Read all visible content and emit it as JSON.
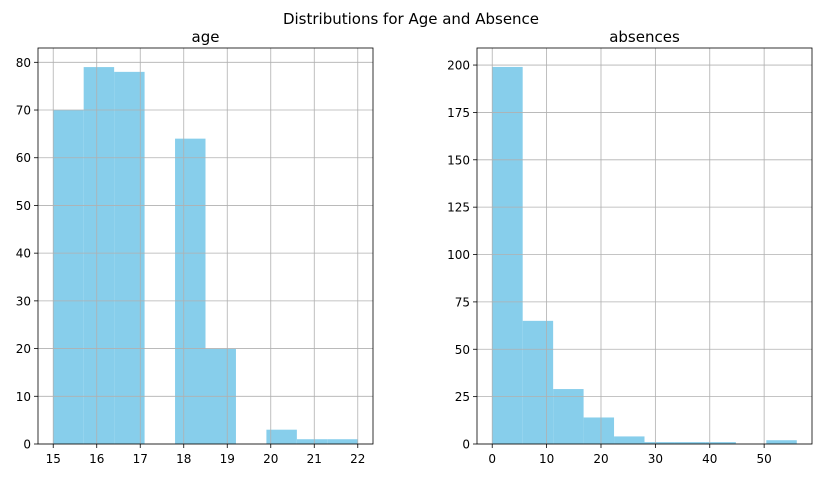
{
  "chart_data": {
    "title": "Distributions for Age and Absence",
    "colors": {
      "bar": "#87ceeb",
      "grid": "#b0b0b0",
      "axis": "#000000"
    },
    "charts": [
      {
        "type": "bar",
        "title": "age",
        "xlabel": "",
        "ylabel": "",
        "grid": true,
        "xlim": [
          14.65,
          22.35
        ],
        "ylim": [
          0,
          83
        ],
        "xticks": [
          15,
          16,
          17,
          18,
          19,
          20,
          21,
          22
        ],
        "yticks": [
          0,
          10,
          20,
          30,
          40,
          50,
          60,
          70,
          80
        ],
        "bins": [
          {
            "x0": 15.0,
            "x1": 15.7,
            "value": 70
          },
          {
            "x0": 15.7,
            "x1": 16.4,
            "value": 79
          },
          {
            "x0": 16.4,
            "x1": 17.1,
            "value": 78
          },
          {
            "x0": 17.1,
            "x1": 17.8,
            "value": 0
          },
          {
            "x0": 17.8,
            "x1": 18.5,
            "value": 64
          },
          {
            "x0": 18.5,
            "x1": 19.2,
            "value": 20
          },
          {
            "x0": 19.2,
            "x1": 19.9,
            "value": 0
          },
          {
            "x0": 19.9,
            "x1": 20.6,
            "value": 3
          },
          {
            "x0": 20.6,
            "x1": 21.3,
            "value": 1
          },
          {
            "x0": 21.3,
            "x1": 22.0,
            "value": 1
          }
        ]
      },
      {
        "type": "bar",
        "title": "absences",
        "xlabel": "",
        "ylabel": "",
        "grid": true,
        "xlim": [
          -2.8,
          58.8
        ],
        "ylim": [
          0,
          209
        ],
        "xticks": [
          0,
          10,
          20,
          30,
          40,
          50
        ],
        "yticks": [
          0,
          25,
          50,
          75,
          100,
          125,
          150,
          175,
          200
        ],
        "bins": [
          {
            "x0": 0.0,
            "x1": 5.6,
            "value": 199
          },
          {
            "x0": 5.6,
            "x1": 11.2,
            "value": 65
          },
          {
            "x0": 11.2,
            "x1": 16.8,
            "value": 29
          },
          {
            "x0": 16.8,
            "x1": 22.4,
            "value": 14
          },
          {
            "x0": 22.4,
            "x1": 28.0,
            "value": 4
          },
          {
            "x0": 28.0,
            "x1": 33.6,
            "value": 1
          },
          {
            "x0": 33.6,
            "x1": 39.2,
            "value": 1
          },
          {
            "x0": 39.2,
            "x1": 44.8,
            "value": 1
          },
          {
            "x0": 44.8,
            "x1": 50.4,
            "value": 0
          },
          {
            "x0": 50.4,
            "x1": 56.0,
            "value": 2
          }
        ]
      }
    ]
  }
}
